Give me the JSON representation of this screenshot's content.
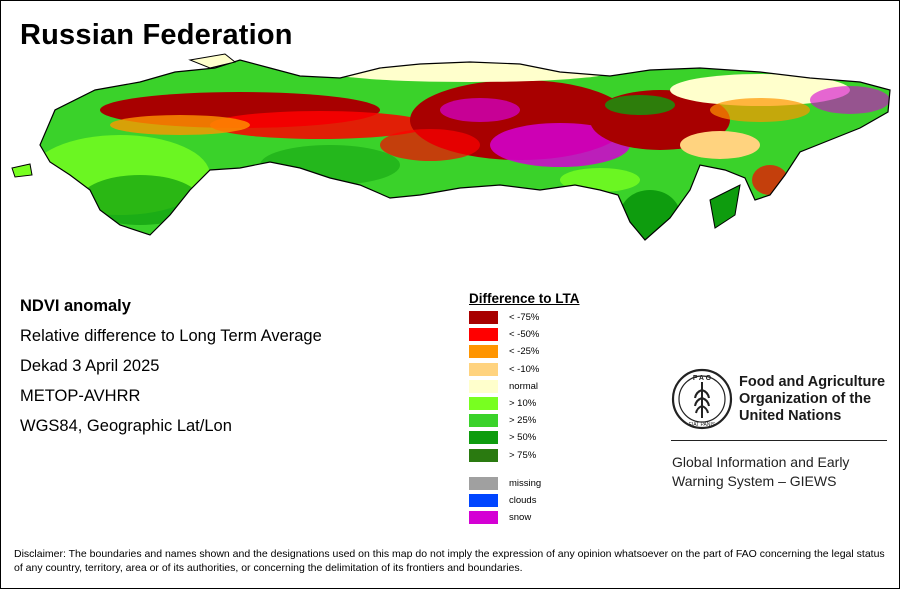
{
  "title": "Russian Federation",
  "info": {
    "product": "NDVI anomaly",
    "description": "Relative difference to Long Term Average",
    "period": "Dekad 3 April 2025",
    "sensor": "METOP-AVHRR",
    "projection": "WGS84, Geographic Lat/Lon"
  },
  "legend": {
    "title": "Difference to LTA",
    "classes": [
      {
        "label": "< -75%",
        "color": "#a80000"
      },
      {
        "label": "< -50%",
        "color": "#ff0000"
      },
      {
        "label": "< -25%",
        "color": "#ff9500"
      },
      {
        "label": "< -10%",
        "color": "#ffd37f"
      },
      {
        "label": "normal",
        "color": "#ffffcc"
      },
      {
        "label": "> 10%",
        "color": "#78ff20"
      },
      {
        "label": "> 25%",
        "color": "#3ad22a"
      },
      {
        "label": "> 50%",
        "color": "#0e9c0e"
      },
      {
        "label": "> 75%",
        "color": "#2a7a10"
      }
    ],
    "other": [
      {
        "label": "missing",
        "color": "#a0a0a0"
      },
      {
        "label": "clouds",
        "color": "#0045ff"
      },
      {
        "label": "snow",
        "color": "#d400d4"
      }
    ]
  },
  "organization": {
    "line1": "Food and Agriculture",
    "line2": "Organization of the",
    "line3": "United Nations",
    "logo_top": "F A O",
    "logo_bottom": "FIAT PANIS"
  },
  "giews": {
    "line1": "Global Information and Early",
    "line2": "Warning System – GIEWS"
  },
  "disclaimer": "Disclaimer: The boundaries and names shown and the designations used on this map do not imply the expression of any opinion whatsoever on the part of FAO concerning the legal status of any country, territory, area or of its authorities, or concerning the delimitation of its frontiers and boundaries."
}
